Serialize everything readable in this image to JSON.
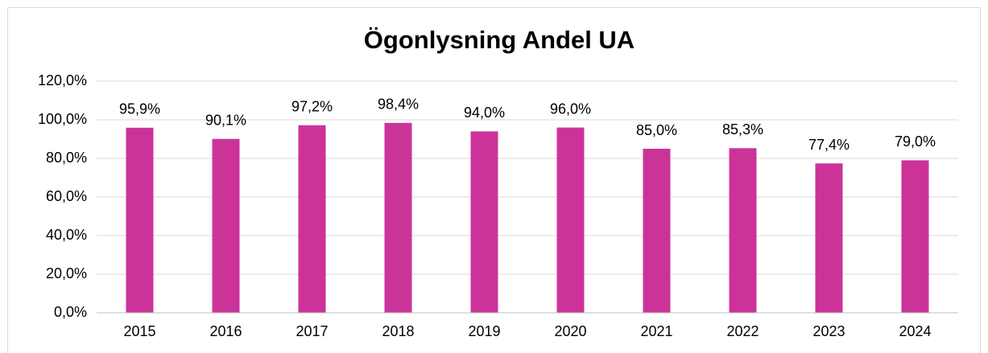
{
  "chart_data": {
    "type": "bar",
    "title": "Ögonlysning Andel UA",
    "categories": [
      "2015",
      "2016",
      "2017",
      "2018",
      "2019",
      "2020",
      "2021",
      "2022",
      "2023",
      "2024"
    ],
    "values": [
      95.9,
      90.1,
      97.2,
      98.4,
      94.0,
      96.0,
      85.0,
      85.3,
      77.4,
      79.0
    ],
    "value_labels": [
      "95,9%",
      "90,1%",
      "97,2%",
      "98,4%",
      "94,0%",
      "96,0%",
      "85,0%",
      "85,3%",
      "77,4%",
      "79,0%"
    ],
    "color": "#cc3399",
    "ylim": [
      0,
      120
    ],
    "yticks": [
      {
        "value": 0,
        "label": "0,0%"
      },
      {
        "value": 20,
        "label": "20,0%"
      },
      {
        "value": 40,
        "label": "40,0%"
      },
      {
        "value": 60,
        "label": "60,0%"
      },
      {
        "value": 80,
        "label": "80,0%"
      },
      {
        "value": 100,
        "label": "100,0%"
      },
      {
        "value": 120,
        "label": "120,0%"
      }
    ],
    "grid": true
  }
}
